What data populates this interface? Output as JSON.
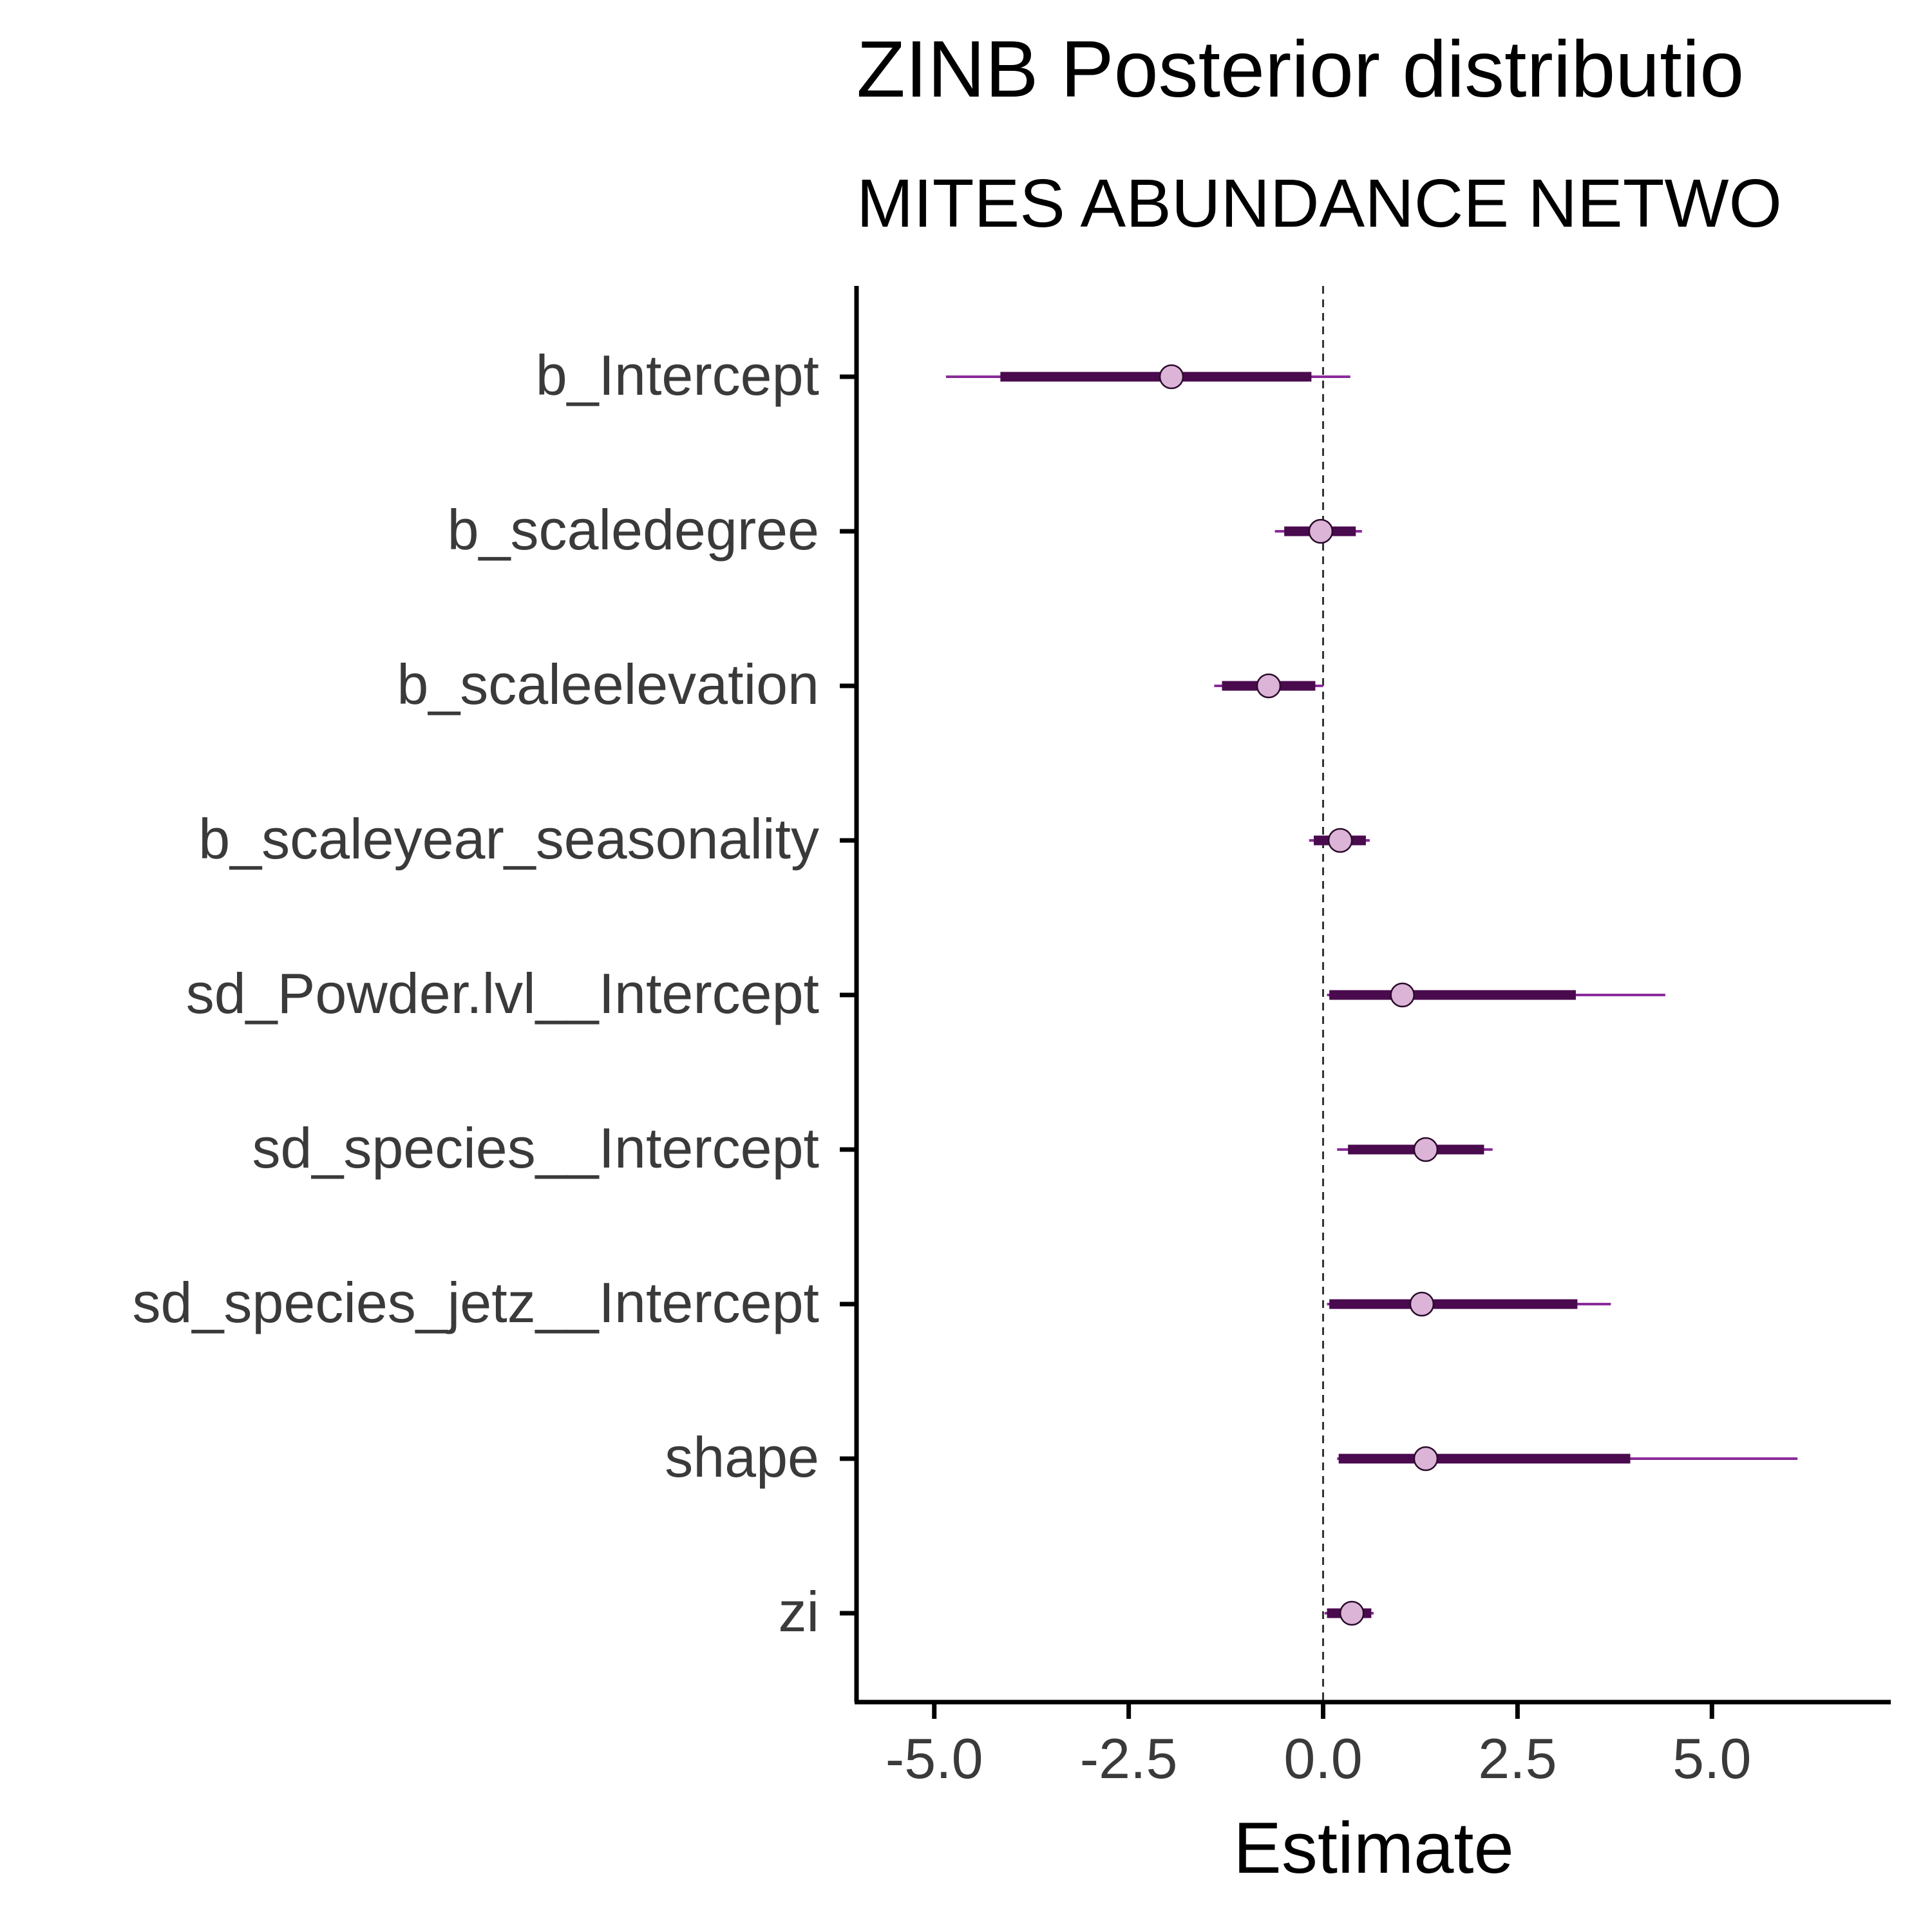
{
  "chart_data": {
    "type": "interval",
    "title": "ZINB Posterior distributio",
    "subtitle": "MITES ABUNDANCE NETWO",
    "xlabel": "Estimate",
    "ylabel": "",
    "xlim": [
      -6.0,
      7.3
    ],
    "x_ticks": [
      -5.0,
      -2.5,
      0.0,
      2.5,
      5.0
    ],
    "x_tick_labels": [
      "-5.0",
      "-2.5",
      "0.0",
      "2.5",
      "5.0"
    ],
    "reference_line": 0.0,
    "grid": false,
    "legend": "none",
    "colors": {
      "point_fill": "#dbb4d8",
      "point_stroke": "#2a0a2a",
      "inner_interval": "#4a0a4e",
      "outer_interval": "#8a2a9a",
      "axis": "#000000",
      "reference_line": "#333333"
    },
    "parameters": [
      {
        "name": "b_Intercept",
        "estimate": -1.95,
        "inner": [
          -4.15,
          -0.15
        ],
        "outer": [
          -4.85,
          0.35
        ]
      },
      {
        "name": "b_scaledegree",
        "estimate": -0.03,
        "inner": [
          -0.5,
          0.42
        ],
        "outer": [
          -0.62,
          0.5
        ]
      },
      {
        "name": "b_scaleelevation",
        "estimate": -0.7,
        "inner": [
          -1.3,
          -0.1
        ],
        "outer": [
          -1.4,
          0.0
        ]
      },
      {
        "name": "b_scaleyear_seasonality",
        "estimate": 0.22,
        "inner": [
          -0.12,
          0.55
        ],
        "outer": [
          -0.18,
          0.6
        ]
      },
      {
        "name": "sd_Powder.lvl__Intercept",
        "estimate": 1.02,
        "inner": [
          0.08,
          3.25
        ],
        "outer": [
          0.05,
          4.4
        ]
      },
      {
        "name": "sd_species__Intercept",
        "estimate": 1.32,
        "inner": [
          0.32,
          2.07
        ],
        "outer": [
          0.18,
          2.18
        ]
      },
      {
        "name": "sd_species_jetz__Intercept",
        "estimate": 1.27,
        "inner": [
          0.08,
          3.27
        ],
        "outer": [
          0.05,
          3.7
        ]
      },
      {
        "name": "shape",
        "estimate": 1.32,
        "inner": [
          0.2,
          3.95
        ],
        "outer": [
          0.18,
          6.1
        ]
      },
      {
        "name": "zi",
        "estimate": 0.37,
        "inner": [
          0.05,
          0.62
        ],
        "outer": [
          0.02,
          0.65
        ]
      }
    ]
  }
}
